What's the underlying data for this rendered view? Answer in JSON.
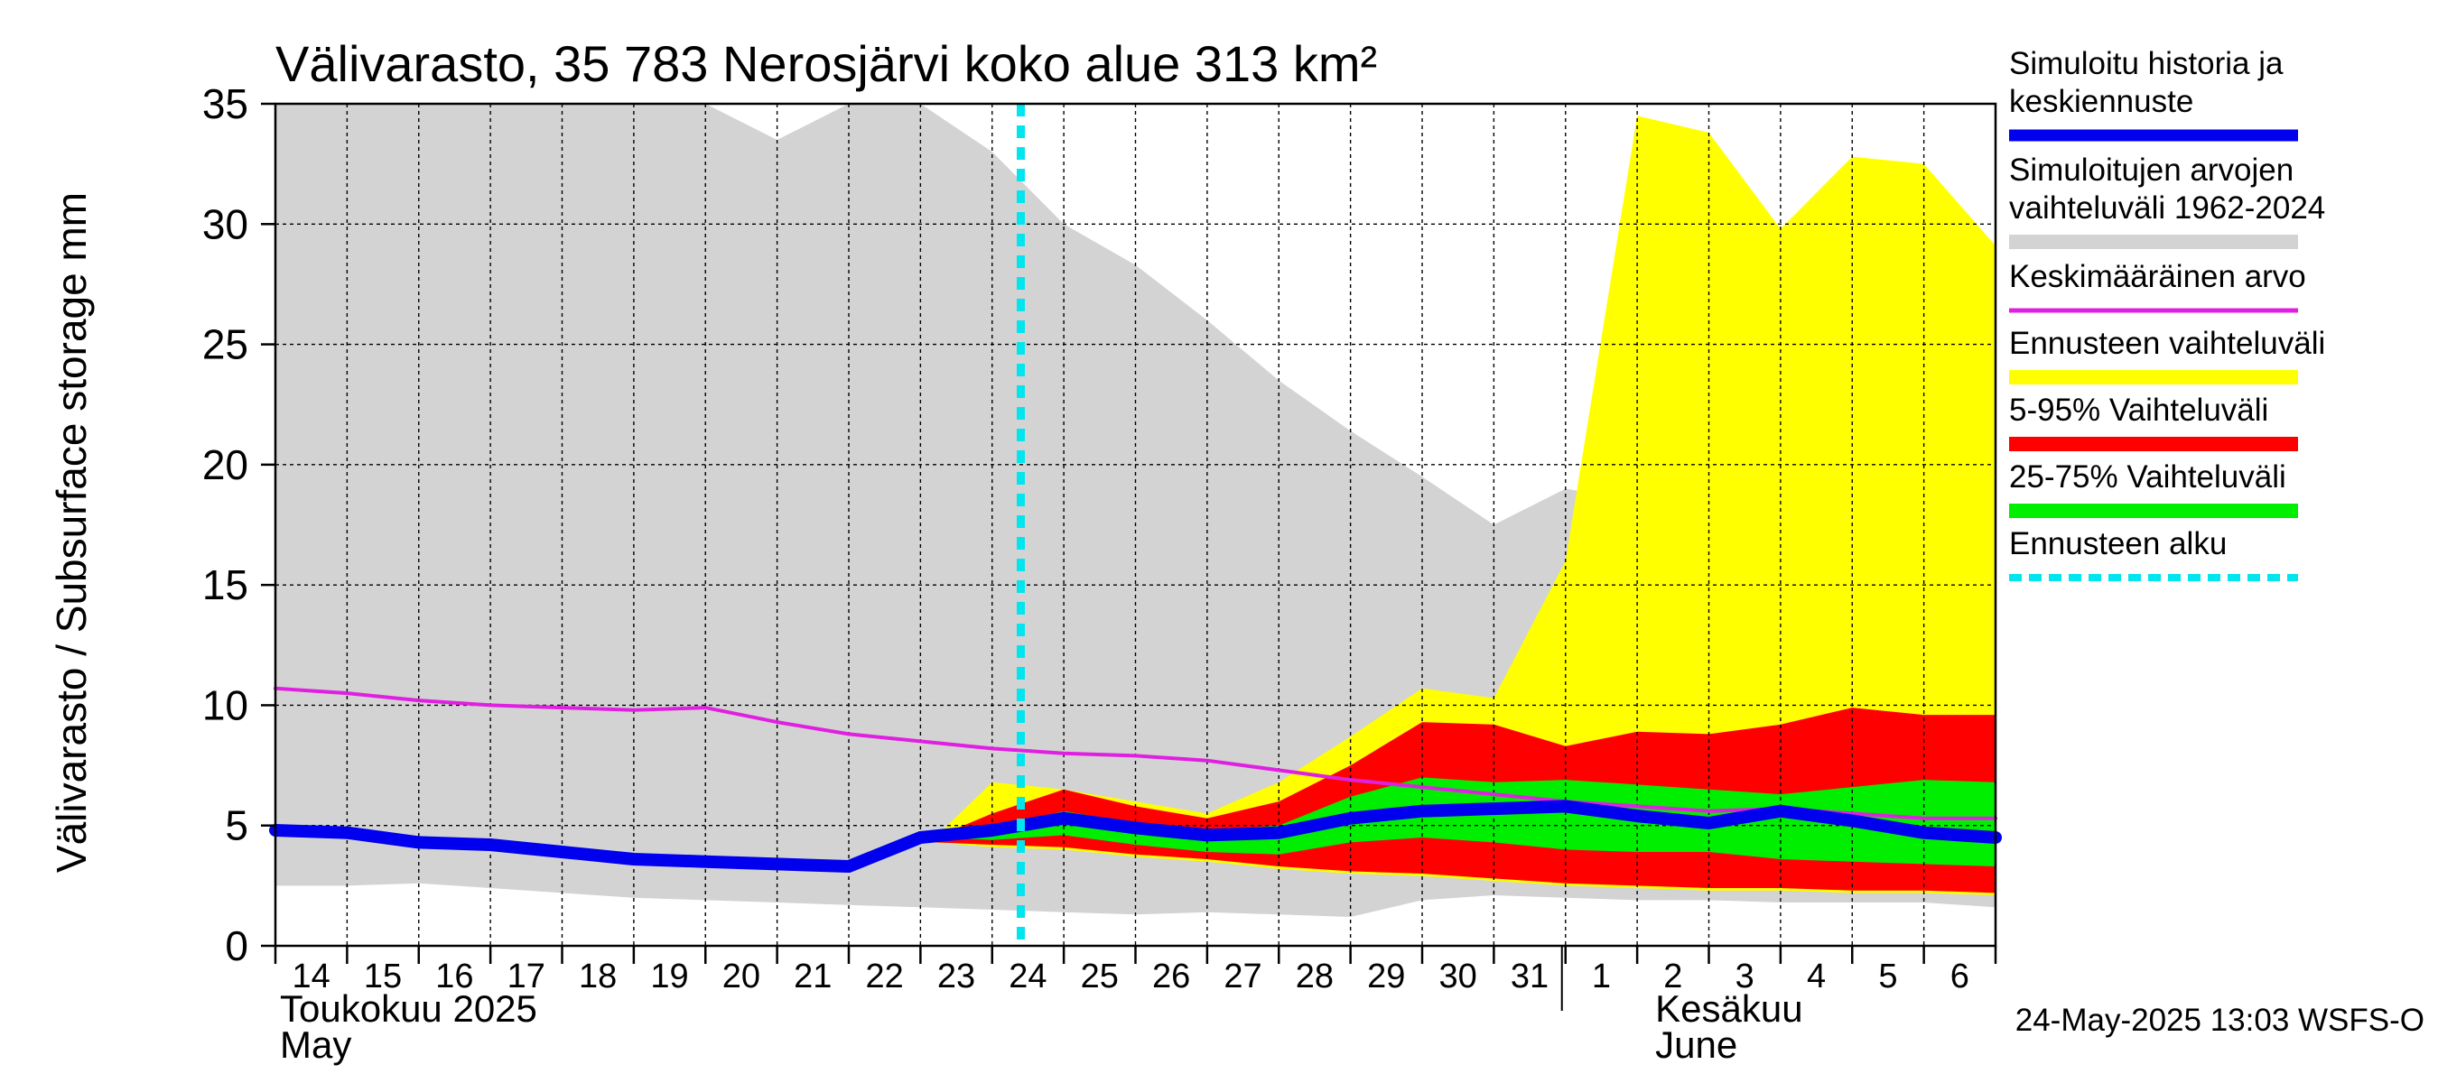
{
  "chart_data": {
    "type": "area",
    "title": "Välivarasto, 35 783 Nerosjärvi koko alue 313 km²",
    "ylabel": "Välivarasto / Subsurface storage  mm",
    "ylim": [
      0,
      35
    ],
    "yticks": [
      0,
      5,
      10,
      15,
      20,
      25,
      30,
      35
    ],
    "x_day_labels": [
      "14",
      "15",
      "16",
      "17",
      "18",
      "19",
      "20",
      "21",
      "22",
      "23",
      "24",
      "25",
      "26",
      "27",
      "28",
      "29",
      "30",
      "31",
      "1",
      "2",
      "3",
      "4",
      "5",
      "6"
    ],
    "x_range_days": [
      0,
      24
    ],
    "month_labels": [
      {
        "fi": "Toukokuu  2025",
        "en": "May",
        "start_day": 0
      },
      {
        "fi": "Kesäkuu",
        "en": "June",
        "start_day": 18
      }
    ],
    "forecast_start_day": 10.4,
    "series": [
      {
        "name": "Simuloitujen arvojen vaihteluväli 1962-2024",
        "kind": "band",
        "color": "#d3d3d3",
        "x": [
          0,
          1,
          2,
          3,
          4,
          5,
          6,
          7,
          8,
          9,
          10,
          11,
          12,
          13,
          14,
          15,
          16,
          17,
          18,
          19,
          20,
          21,
          22,
          23,
          24
        ],
        "low": [
          2.5,
          2.5,
          2.6,
          2.4,
          2.2,
          2.0,
          1.9,
          1.8,
          1.7,
          1.6,
          1.5,
          1.4,
          1.3,
          1.4,
          1.3,
          1.2,
          1.9,
          2.1,
          2.0,
          1.9,
          1.9,
          1.8,
          1.8,
          1.8,
          1.6
        ],
        "high": [
          35,
          35,
          35,
          35,
          35,
          35,
          35,
          33.5,
          35,
          35,
          33,
          30,
          28.3,
          26,
          23.5,
          21.4,
          19.5,
          17.5,
          19,
          18.5,
          17.4,
          18.4,
          17,
          16,
          15.8
        ]
      },
      {
        "name": "Ennusteen vaihteluväli",
        "kind": "band",
        "color": "#ffff00",
        "x": [
          9.2,
          10,
          11,
          12,
          13,
          14,
          15,
          16,
          17,
          18,
          19,
          20,
          21,
          22,
          23,
          24
        ],
        "low": [
          4.3,
          4.1,
          4.0,
          3.7,
          3.5,
          3.2,
          3.0,
          2.9,
          2.7,
          2.5,
          2.4,
          2.3,
          2.3,
          2.2,
          2.2,
          2.1
        ],
        "high": [
          4.5,
          6.8,
          6.5,
          6.0,
          5.5,
          6.8,
          8.7,
          10.7,
          10.3,
          16,
          34.5,
          33.8,
          29.8,
          32.8,
          32.5,
          29.1
        ]
      },
      {
        "name": "5-95% Vaihteluväli",
        "kind": "band",
        "color": "#ff0000",
        "x": [
          9.2,
          10,
          11,
          12,
          13,
          14,
          15,
          16,
          17,
          18,
          19,
          20,
          21,
          22,
          23,
          24
        ],
        "low": [
          4.3,
          4.2,
          4.1,
          3.8,
          3.6,
          3.3,
          3.1,
          3.0,
          2.8,
          2.6,
          2.5,
          2.4,
          2.4,
          2.3,
          2.3,
          2.2
        ],
        "high": [
          4.5,
          5.5,
          6.5,
          5.8,
          5.3,
          6.0,
          7.5,
          9.3,
          9.2,
          8.3,
          8.9,
          8.8,
          9.2,
          9.9,
          9.6,
          9.6
        ]
      },
      {
        "name": "25-75% Vaihteluväli",
        "kind": "band",
        "color": "#00ee00",
        "x": [
          9.2,
          10,
          11,
          12,
          13,
          14,
          15,
          16,
          17,
          18,
          19,
          20,
          21,
          22,
          23,
          24
        ],
        "low": [
          4.5,
          4.4,
          4.6,
          4.2,
          3.9,
          3.8,
          4.3,
          4.5,
          4.3,
          4.0,
          3.9,
          3.9,
          3.6,
          3.5,
          3.4,
          3.3
        ],
        "high": [
          4.5,
          4.9,
          5.6,
          5.1,
          4.8,
          5.0,
          6.2,
          7.0,
          6.8,
          6.9,
          6.7,
          6.5,
          6.3,
          6.6,
          6.9,
          6.8
        ]
      },
      {
        "name": "Keskimääräinen arvo",
        "kind": "line",
        "color": "#e020e0",
        "x": [
          0,
          1,
          2,
          3,
          4,
          5,
          6,
          7,
          8,
          9,
          10,
          11,
          12,
          13,
          14,
          15,
          16,
          17,
          18,
          19,
          20,
          21,
          22,
          23,
          24
        ],
        "values": [
          10.7,
          10.5,
          10.2,
          10.0,
          9.9,
          9.8,
          9.9,
          9.3,
          8.8,
          8.5,
          8.2,
          8.0,
          7.9,
          7.7,
          7.3,
          6.9,
          6.6,
          6.3,
          6.0,
          5.8,
          5.6,
          5.7,
          5.5,
          5.3,
          5.3
        ]
      },
      {
        "name": "Simuloitu historia ja keskiennuste",
        "kind": "line",
        "color": "#0000ee",
        "x": [
          0,
          1,
          2,
          3,
          4,
          5,
          6,
          7,
          8,
          9,
          10,
          11,
          12,
          13,
          14,
          15,
          16,
          17,
          18,
          19,
          20,
          21,
          22,
          23,
          24
        ],
        "values": [
          4.8,
          4.7,
          4.3,
          4.2,
          3.9,
          3.6,
          3.5,
          3.4,
          3.3,
          4.5,
          4.8,
          5.3,
          4.9,
          4.6,
          4.7,
          5.3,
          5.6,
          5.7,
          5.8,
          5.4,
          5.1,
          5.6,
          5.2,
          4.7,
          4.5
        ]
      },
      {
        "name": "Ennusteen alku",
        "kind": "vline",
        "color": "#00e5ee",
        "x": 10.4
      }
    ],
    "legend": [
      {
        "label_lines": [
          "Simuloitu historia ja",
          "keskiennuste"
        ],
        "color": "#0000ee",
        "style": "thick"
      },
      {
        "label_lines": [
          "Simuloitujen arvojen",
          "vaihteluväli 1962-2024"
        ],
        "color": "#d3d3d3",
        "style": "band"
      },
      {
        "label_lines": [
          "Keskimääräinen arvo"
        ],
        "color": "#e020e0",
        "style": "line"
      },
      {
        "label_lines": [
          "Ennusteen vaihteluväli"
        ],
        "color": "#ffff00",
        "style": "band"
      },
      {
        "label_lines": [
          "5-95% Vaihteluväli"
        ],
        "color": "#ff0000",
        "style": "band"
      },
      {
        "label_lines": [
          "25-75% Vaihteluväli"
        ],
        "color": "#00ee00",
        "style": "band"
      },
      {
        "label_lines": [
          "Ennusteen alku"
        ],
        "color": "#00e5ee",
        "style": "dashed"
      }
    ],
    "legend_position": "right",
    "footer": "24-May-2025 13:03 WSFS-O"
  }
}
